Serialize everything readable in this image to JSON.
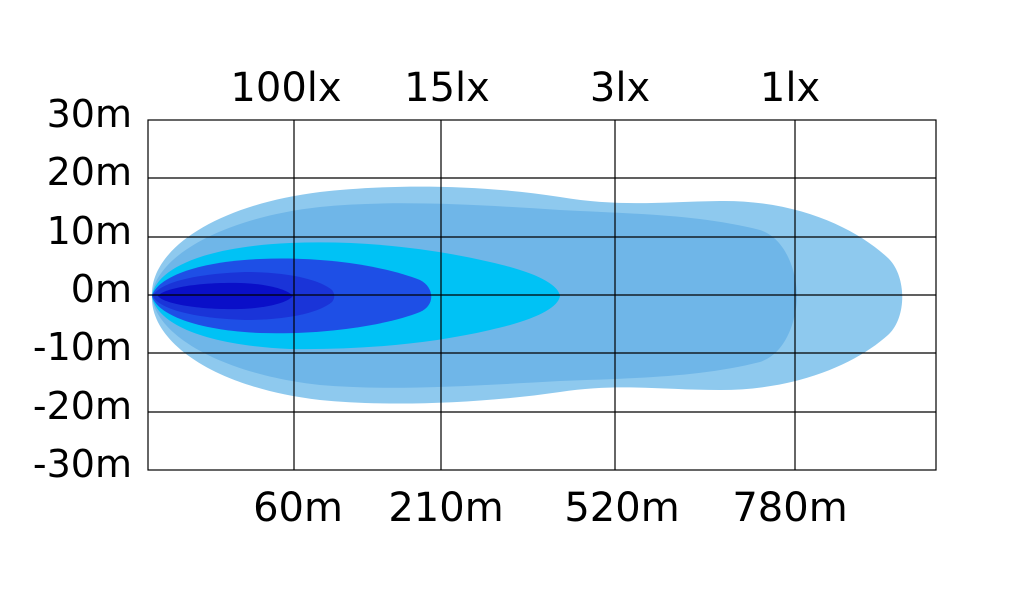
{
  "chart_data": {
    "type": "area",
    "title": "",
    "xlabel": "",
    "ylabel": "",
    "y_ticks": [
      "30m",
      "20m",
      "10m",
      "0m",
      "-10m",
      "-20m",
      "-30m"
    ],
    "x_ticks": [
      "60m",
      "210m",
      "520m",
      "780m"
    ],
    "lux_labels": [
      "100lx",
      "15lx",
      "3lx",
      "1lx"
    ],
    "ylim": [
      -30,
      30
    ],
    "grid": true,
    "beam_zones": [
      {
        "lux": "1lx",
        "color": "#8EC9EE",
        "half_width_m": 18
      },
      {
        "lux": "3lx",
        "color": "#6FB6E8",
        "half_width_m": 14
      },
      {
        "lux": "15lx",
        "color": "#00C2F5",
        "half_width_m": 9
      },
      {
        "lux": "100lx",
        "color": "#1E4FE6",
        "half_width_m": 6
      },
      {
        "lux": "peak",
        "color": "#0A0FC8",
        "half_width_m": 3
      }
    ],
    "colors": {
      "grid": "#000000",
      "background": "#ffffff"
    }
  }
}
